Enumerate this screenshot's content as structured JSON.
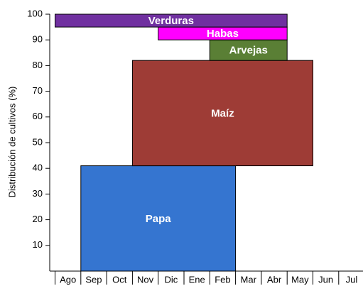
{
  "chart_data": {
    "type": "range_bar",
    "y_label": "Distribución de cultivos (%)",
    "categories": [
      "Ago",
      "Sep",
      "Oct",
      "Nov",
      "Dic",
      "Ene",
      "Feb",
      "Mar",
      "Abr",
      "May",
      "Jun",
      "Jul"
    ],
    "ylim": [
      0,
      100
    ],
    "yticks": [
      10,
      20,
      30,
      40,
      50,
      60,
      70,
      80,
      90,
      100
    ],
    "segments": [
      {
        "name": "Papa",
        "color": "#3575d0",
        "start": "Sep",
        "end": "Feb",
        "low": 0,
        "high": 41
      },
      {
        "name": "Maíz",
        "color": "#9e3c36",
        "start": "Nov",
        "end": "May",
        "low": 41,
        "high": 82
      },
      {
        "name": "Arvejas",
        "color": "#5a7f35",
        "start": "Feb",
        "end": "Abr",
        "low": 82,
        "high": 90
      },
      {
        "name": "Habas",
        "color": "#ff00ff",
        "start": "Dic",
        "end": "Abr",
        "low": 90,
        "high": 95
      },
      {
        "name": "Verduras",
        "color": "#7030a0",
        "start": "Ago",
        "end": "Abr",
        "low": 95,
        "high": 100
      }
    ]
  }
}
